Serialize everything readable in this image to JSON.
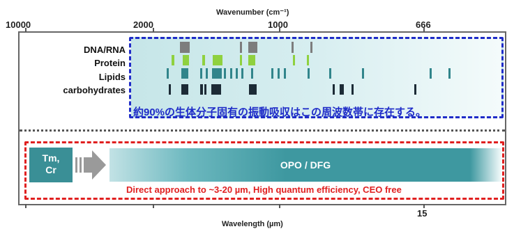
{
  "axes": {
    "top_title": "Wavenumber (cm⁻¹)",
    "top_ticks": [
      "10000",
      "2000",
      "1000",
      "666"
    ],
    "bottom_title": "Wavelength (µm)",
    "bottom_ticks": [
      "15"
    ]
  },
  "spectral": {
    "categories": [
      {
        "label": "DNA/RNA",
        "color": "#7d7d7d"
      },
      {
        "label": "Protein",
        "color": "#8fd13f"
      },
      {
        "label": "Lipids",
        "color": "#31858b"
      },
      {
        "label": "carbohydrates",
        "color": "#1c2b36"
      }
    ],
    "note": "約90%の生体分子固有の振動吸収はこの周波数帯に存在する。"
  },
  "source": {
    "pump_label_line1": "Tm,",
    "pump_label_line2": "Cr",
    "opo_label": "OPO / DFG",
    "features": "Direct approach to ~3-20 µm, High quantum efficiency, CEO free"
  },
  "colors": {
    "blue_dash": "#1f2cc8",
    "red_dash": "#e02020",
    "teal": "#3e98a0"
  }
}
